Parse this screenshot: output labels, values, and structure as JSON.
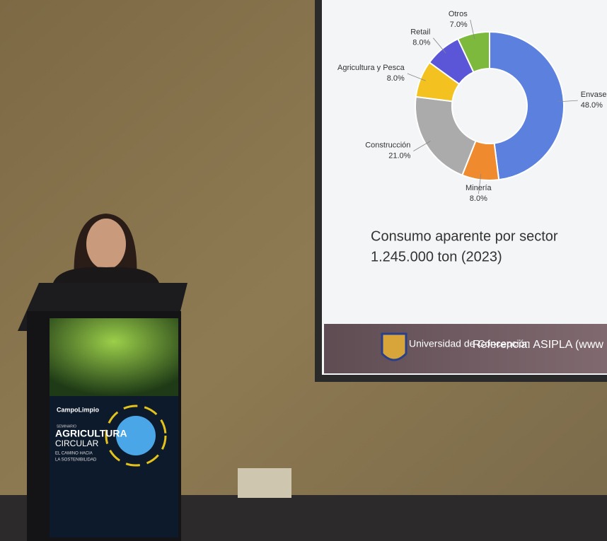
{
  "chart_data": {
    "type": "donut",
    "categories": [
      "Envases",
      "Minería",
      "Construcción",
      "Agricultura y Pesca",
      "Retail",
      "Otros"
    ],
    "values": [
      48.0,
      8.0,
      21.0,
      8.0,
      8.0,
      7.0
    ],
    "value_labels": [
      "48.0%",
      "8.0%",
      "21.0%",
      "8.0%",
      "8.0%",
      "7.0%"
    ],
    "colors": [
      "#5b80de",
      "#ef8a2e",
      "#ababab",
      "#f3c220",
      "#5b55d8",
      "#7cb93c"
    ],
    "title": "Consumo aparente por sector",
    "subtitle": "1.245.000 ton (2023)"
  },
  "slide_footer": {
    "logo": "Universidad de Concepción",
    "reference": "Referencia:  ASIPLA (www"
  },
  "podium": {
    "brand": "CampoLimpio",
    "kicker": "SEMINARIO",
    "line1": "AGRICULTURA",
    "line2": "CIRCULAR",
    "tag1": "EL CAMINO HACIA",
    "tag2": "LA SOSTENIBILIDAD"
  }
}
